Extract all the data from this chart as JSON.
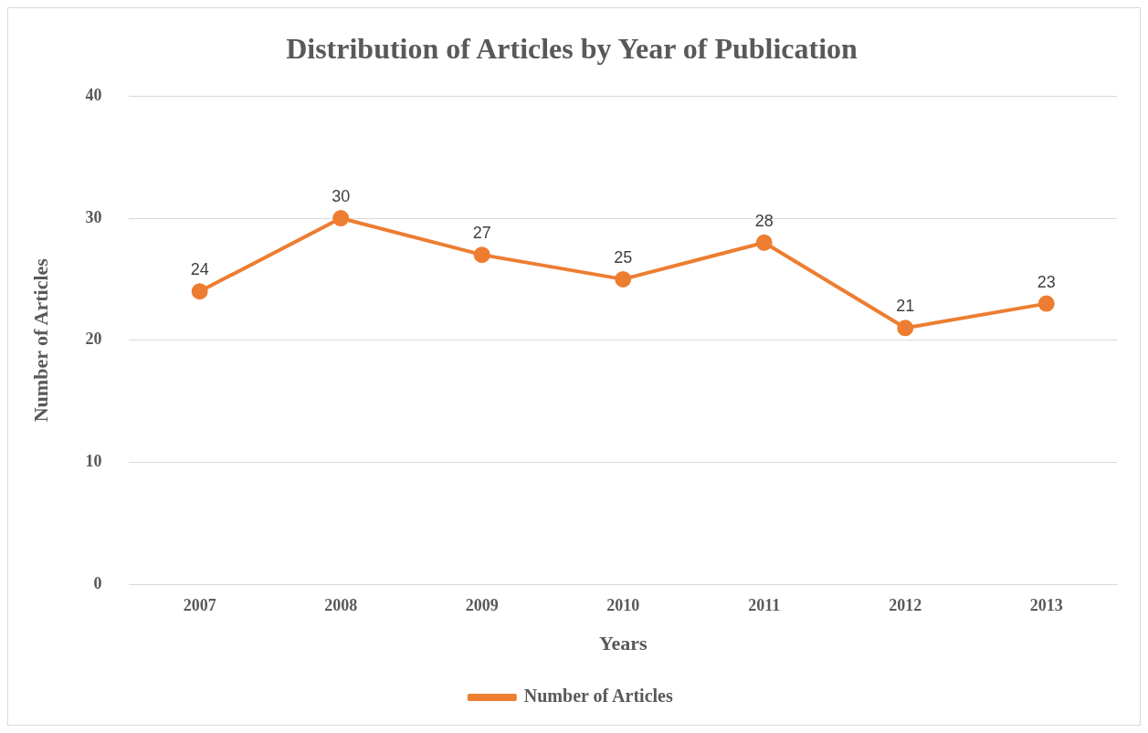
{
  "chart_data": {
    "type": "line",
    "title": "Distribution of Articles by Year of Publication",
    "xlabel": "Years",
    "ylabel": "Number of Articles",
    "categories": [
      "2007",
      "2008",
      "2009",
      "2010",
      "2011",
      "2012",
      "2013"
    ],
    "series": [
      {
        "name": "Number of Articles",
        "color": "#ed7d31",
        "values": [
          24,
          30,
          27,
          25,
          28,
          21,
          23
        ]
      }
    ],
    "ylim": [
      0,
      40
    ],
    "yticks": [
      0,
      10,
      20,
      30,
      40
    ],
    "grid": "y",
    "legend": "bottom",
    "marker": "circle",
    "line_style": "solid",
    "data_labels": true
  }
}
